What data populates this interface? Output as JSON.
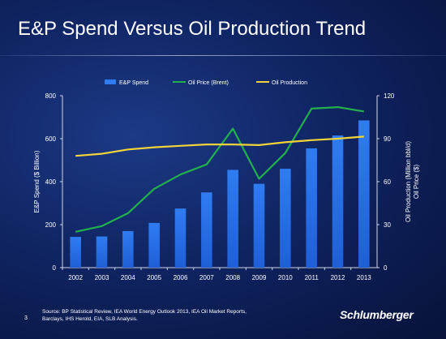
{
  "slide": {
    "title": "E&P Spend Versus Oil Production Trend",
    "page_number": "3",
    "source": "Source: BP Statistical Review, IEA World Energy Outlook 2013, IEA Oil Market Reports, Barclays, IHS Herold, EIA, SLB Analysis.",
    "logo_text": "Schlumberger"
  },
  "colors": {
    "bar": "#2f7cf0",
    "oil_price": "#22b14c",
    "oil_production": "#f2d43a"
  },
  "chart_data": {
    "type": "bar",
    "title": "E&P Spend Versus Oil Production Trend",
    "categories": [
      "2002",
      "2003",
      "2004",
      "2005",
      "2006",
      "2007",
      "2008",
      "2009",
      "2010",
      "2011",
      "2012",
      "2013"
    ],
    "ylabel": "E&P Spend ($ Billion)",
    "ylim": [
      0,
      800
    ],
    "yticks": [
      "0",
      "200",
      "400",
      "600",
      "800"
    ],
    "y2label": "Oil Production (Million bbl/d) Oil Price ($)",
    "y2lim": [
      0,
      120
    ],
    "y2ticks": [
      "0",
      "30",
      "60",
      "90",
      "120"
    ],
    "legend_position": "top",
    "grid": false,
    "series": [
      {
        "name": "E&P Spend",
        "type": "bar",
        "axis": "left",
        "values": [
          143,
          145,
          170,
          208,
          275,
          350,
          455,
          390,
          460,
          555,
          615,
          685
        ]
      },
      {
        "name": "Oil Price (Brent)",
        "type": "line",
        "axis": "right",
        "values": [
          25,
          29,
          38,
          55,
          65,
          72,
          97,
          62,
          80,
          111,
          112,
          109
        ]
      },
      {
        "name": "Oil Production",
        "type": "line",
        "axis": "right",
        "values": [
          78,
          79.5,
          82.5,
          84,
          85,
          86,
          86,
          85.5,
          87.5,
          89,
          90,
          91.5
        ]
      }
    ]
  }
}
